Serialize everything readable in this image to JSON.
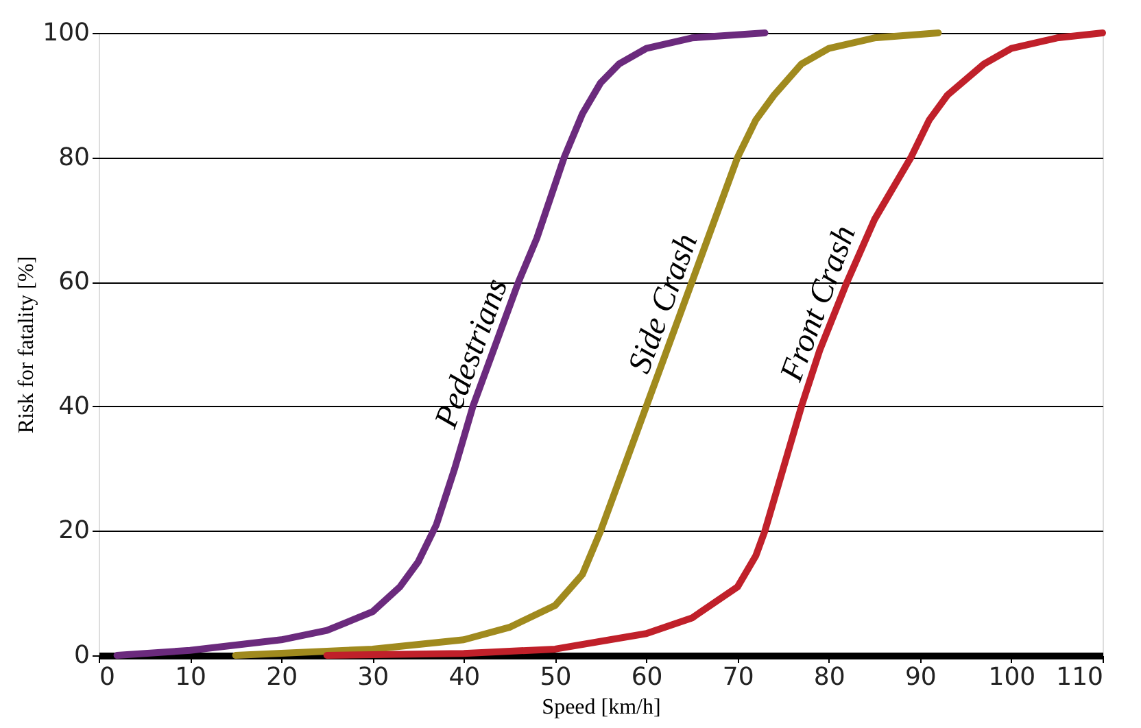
{
  "chart_data": {
    "type": "line",
    "xlabel": "Speed [km/h]",
    "ylabel": "Risk for fatality [%]",
    "xlim": [
      0,
      110
    ],
    "xticks": [
      0,
      10,
      20,
      30,
      40,
      50,
      60,
      70,
      80,
      90,
      100,
      110
    ],
    "ylim": [
      0,
      100
    ],
    "yticks": [
      0,
      20,
      40,
      60,
      80,
      100
    ],
    "grid": "y",
    "marker": "none",
    "line_style": "solid",
    "series": [
      {
        "name": "Pedestrians",
        "color": "#6b2a7d",
        "x": [
          2,
          10,
          20,
          25,
          30,
          33,
          35,
          37,
          39,
          41,
          44,
          46,
          48,
          51,
          53,
          55,
          57,
          60,
          65,
          73
        ],
        "values": [
          0,
          0.8,
          2.5,
          4,
          7,
          11,
          15,
          21,
          30,
          40,
          52,
          60,
          67,
          80,
          87,
          92,
          95,
          97.5,
          99.2,
          100
        ]
      },
      {
        "name": "Side Crash",
        "color": "#a08a1e",
        "x": [
          15,
          30,
          40,
          45,
          50,
          53,
          55,
          57,
          59,
          60,
          62,
          65,
          67,
          70,
          72,
          74,
          77,
          80,
          85,
          92
        ],
        "values": [
          0,
          1,
          2.5,
          4.5,
          8,
          13,
          20,
          28,
          36,
          40,
          48,
          60,
          68,
          80,
          86,
          90,
          95,
          97.5,
          99.2,
          100
        ]
      },
      {
        "name": "Front Crash",
        "color": "#c0202a",
        "x": [
          25,
          40,
          50,
          60,
          65,
          70,
          72,
          73,
          75,
          77,
          79,
          82,
          85,
          89,
          91,
          93,
          97,
          100,
          105,
          110
        ],
        "values": [
          0,
          0.3,
          1,
          3.5,
          6,
          11,
          16,
          20,
          30,
          40,
          49,
          60,
          70,
          80,
          86,
          90,
          95,
          97.5,
          99.2,
          100
        ]
      }
    ]
  }
}
